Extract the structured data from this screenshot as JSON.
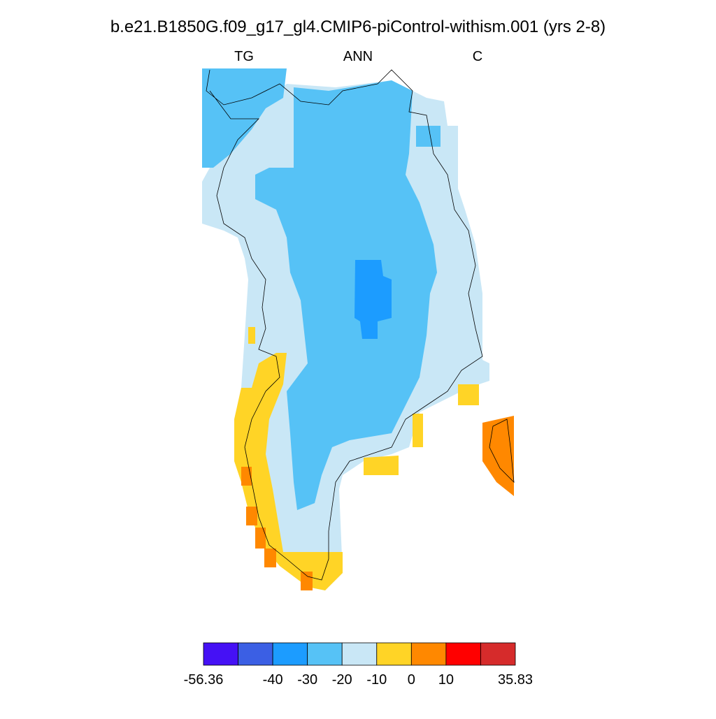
{
  "title": "b.e21.B1850G.f09_g17_gl4.CMIP6-piControl-withism.001 (yrs 2-8)",
  "subtitles": {
    "left": "TG",
    "center": "ANN",
    "right": "C"
  },
  "colorbar": {
    "colors": [
      "#4511f5",
      "#3b5fe4",
      "#1c9cff",
      "#56c2f6",
      "#c9e7f6",
      "#ffd426",
      "#ff8800",
      "#ff0000",
      "#d62b2b"
    ],
    "edges": [
      -56.36,
      null,
      -40,
      -30,
      -20,
      -10,
      0,
      10,
      null,
      35.83
    ]
  }
}
